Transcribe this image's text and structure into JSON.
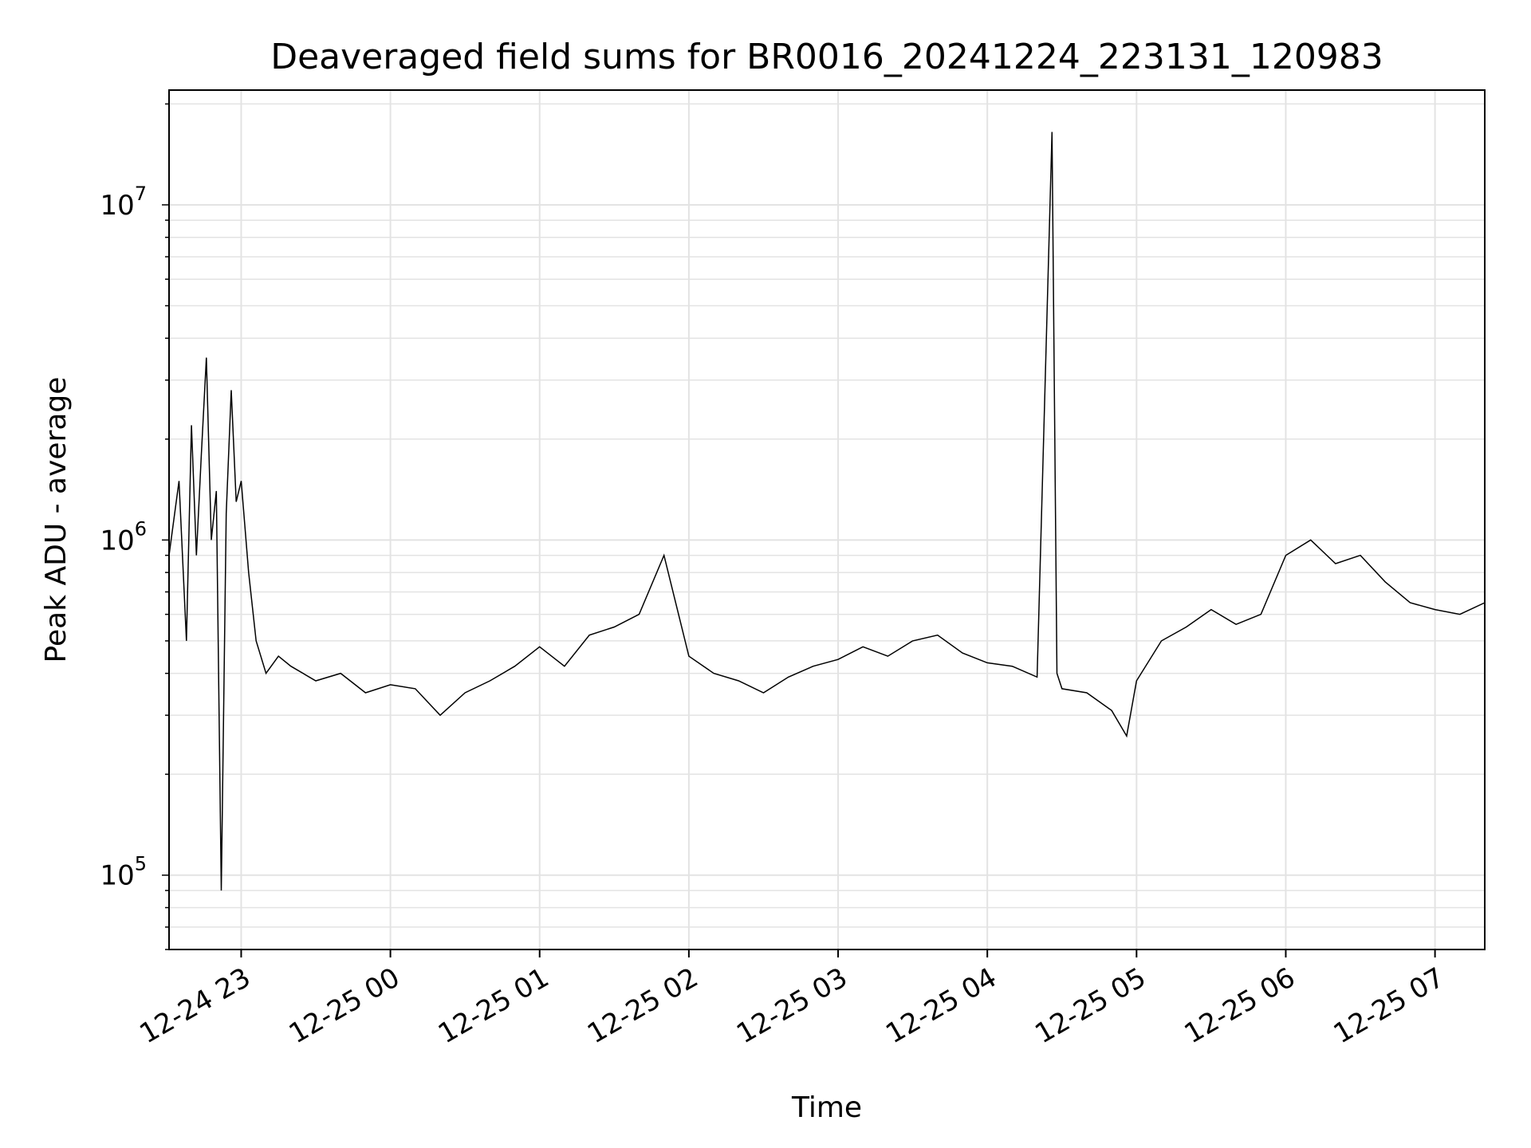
{
  "chart_data": {
    "type": "line",
    "title": "Deaveraged field sums for BR0016_20241224_223131_120983",
    "xlabel": "Time",
    "ylabel": "Peak ADU - average",
    "yscale": "log",
    "ylim": [
      60000,
      22000000
    ],
    "xlim": [
      "12-24 22:31",
      "12-25 07:20"
    ],
    "grid": true,
    "x_ticks": [
      "12-24 23",
      "12-25 00",
      "12-25 01",
      "12-25 02",
      "12-25 03",
      "12-25 04",
      "12-25 05",
      "12-25 06",
      "12-25 07"
    ],
    "y_ticks": [
      {
        "base": "10",
        "exp": "5",
        "value": 100000
      },
      {
        "base": "10",
        "exp": "6",
        "value": 1000000
      },
      {
        "base": "10",
        "exp": "7",
        "value": 10000000
      }
    ],
    "series": [
      {
        "color": "#000000",
        "x": [
          "22:31",
          "22:35",
          "22:38",
          "22:40",
          "22:42",
          "22:44",
          "22:46",
          "22:48",
          "22:50",
          "22:52",
          "22:54",
          "22:56",
          "22:58",
          "23:00",
          "23:03",
          "23:06",
          "23:10",
          "23:15",
          "23:20",
          "23:30",
          "23:40",
          "23:50",
          "00:00",
          "00:10",
          "00:20",
          "00:30",
          "00:40",
          "00:50",
          "01:00",
          "01:10",
          "01:20",
          "01:30",
          "01:40",
          "01:50",
          "02:00",
          "02:10",
          "02:20",
          "02:30",
          "02:40",
          "02:50",
          "03:00",
          "03:10",
          "03:20",
          "03:30",
          "03:40",
          "03:50",
          "04:00",
          "04:10",
          "04:20",
          "04:26",
          "04:28",
          "04:30",
          "04:40",
          "04:50",
          "04:56",
          "05:00",
          "05:10",
          "05:20",
          "05:30",
          "05:40",
          "05:50",
          "06:00",
          "06:10",
          "06:20",
          "06:30",
          "06:40",
          "06:50",
          "07:00",
          "07:10",
          "07:20"
        ],
        "values": [
          900000,
          1500000,
          500000,
          2200000,
          900000,
          1800000,
          3500000,
          1000000,
          1400000,
          90000,
          1200000,
          2800000,
          1300000,
          1500000,
          800000,
          500000,
          400000,
          450000,
          420000,
          380000,
          400000,
          350000,
          370000,
          360000,
          300000,
          350000,
          380000,
          420000,
          480000,
          420000,
          520000,
          550000,
          600000,
          900000,
          450000,
          400000,
          380000,
          350000,
          390000,
          420000,
          440000,
          480000,
          450000,
          500000,
          520000,
          460000,
          430000,
          420000,
          390000,
          16500000,
          400000,
          360000,
          350000,
          310000,
          260000,
          380000,
          500000,
          550000,
          620000,
          560000,
          600000,
          900000,
          1000000,
          850000,
          900000,
          750000,
          650000,
          620000,
          600000,
          650000
        ]
      }
    ]
  }
}
